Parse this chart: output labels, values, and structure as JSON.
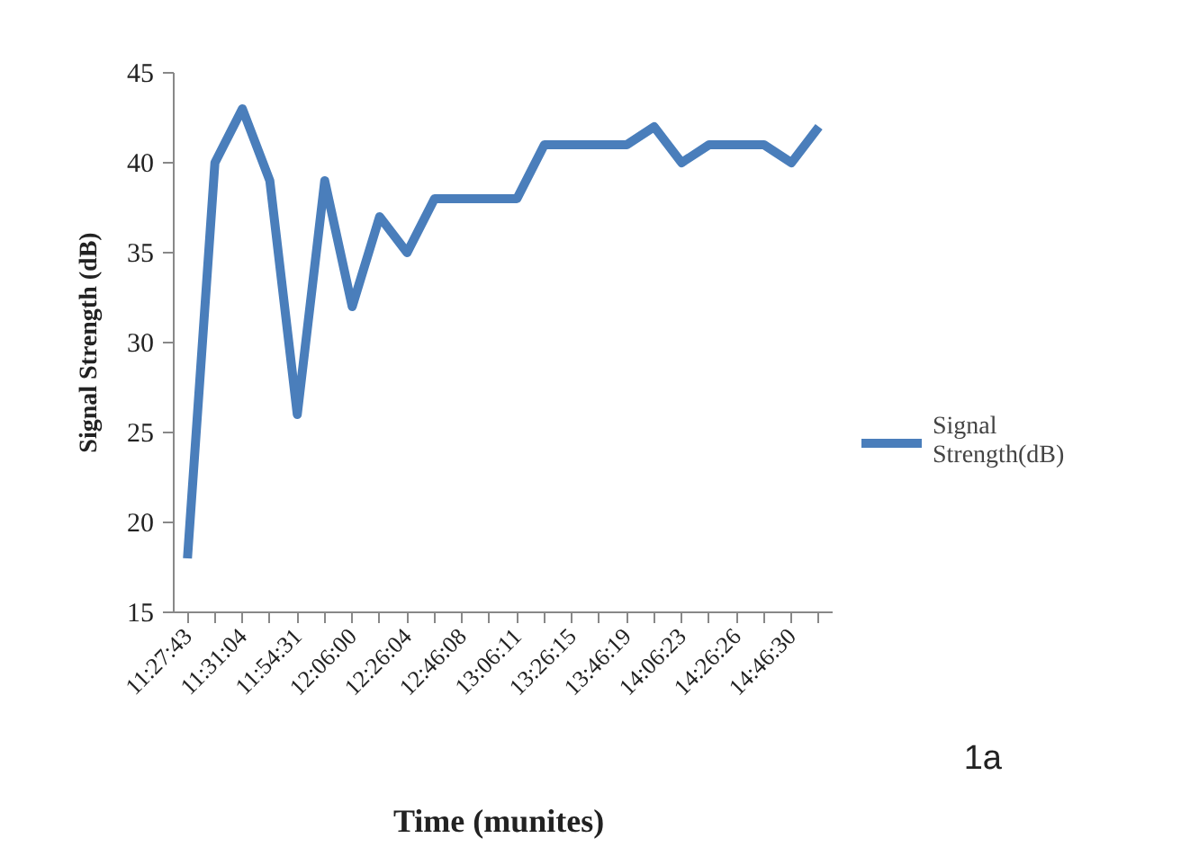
{
  "chart_data": {
    "type": "line",
    "xlabel": "Time (munites)",
    "ylabel": "Signal Strength (dB)",
    "categories": [
      "11:27:43",
      null,
      "11:31:04",
      null,
      "11:54:31",
      null,
      "12:06:00",
      null,
      "12:26:04",
      null,
      "12:46:08",
      null,
      "13:06:11",
      null,
      "13:26:15",
      null,
      "13:46:19",
      null,
      "14:06:23",
      null,
      "14:26:26",
      null,
      "14:46:30",
      null
    ],
    "series": [
      {
        "name": "Signal Strength(dB)",
        "color": "#4a7ebb",
        "values": [
          18,
          40,
          43,
          39,
          26,
          39,
          32,
          37,
          35,
          38,
          38,
          38,
          38,
          41,
          41,
          41,
          41,
          42,
          40,
          41,
          41,
          41,
          40,
          42
        ]
      }
    ],
    "ylim": [
      15,
      45
    ],
    "yticks": [
      15,
      20,
      25,
      30,
      35,
      40,
      45
    ],
    "grid": false,
    "legend": "right",
    "line_style": "solid",
    "annotations": [
      "1a"
    ]
  }
}
